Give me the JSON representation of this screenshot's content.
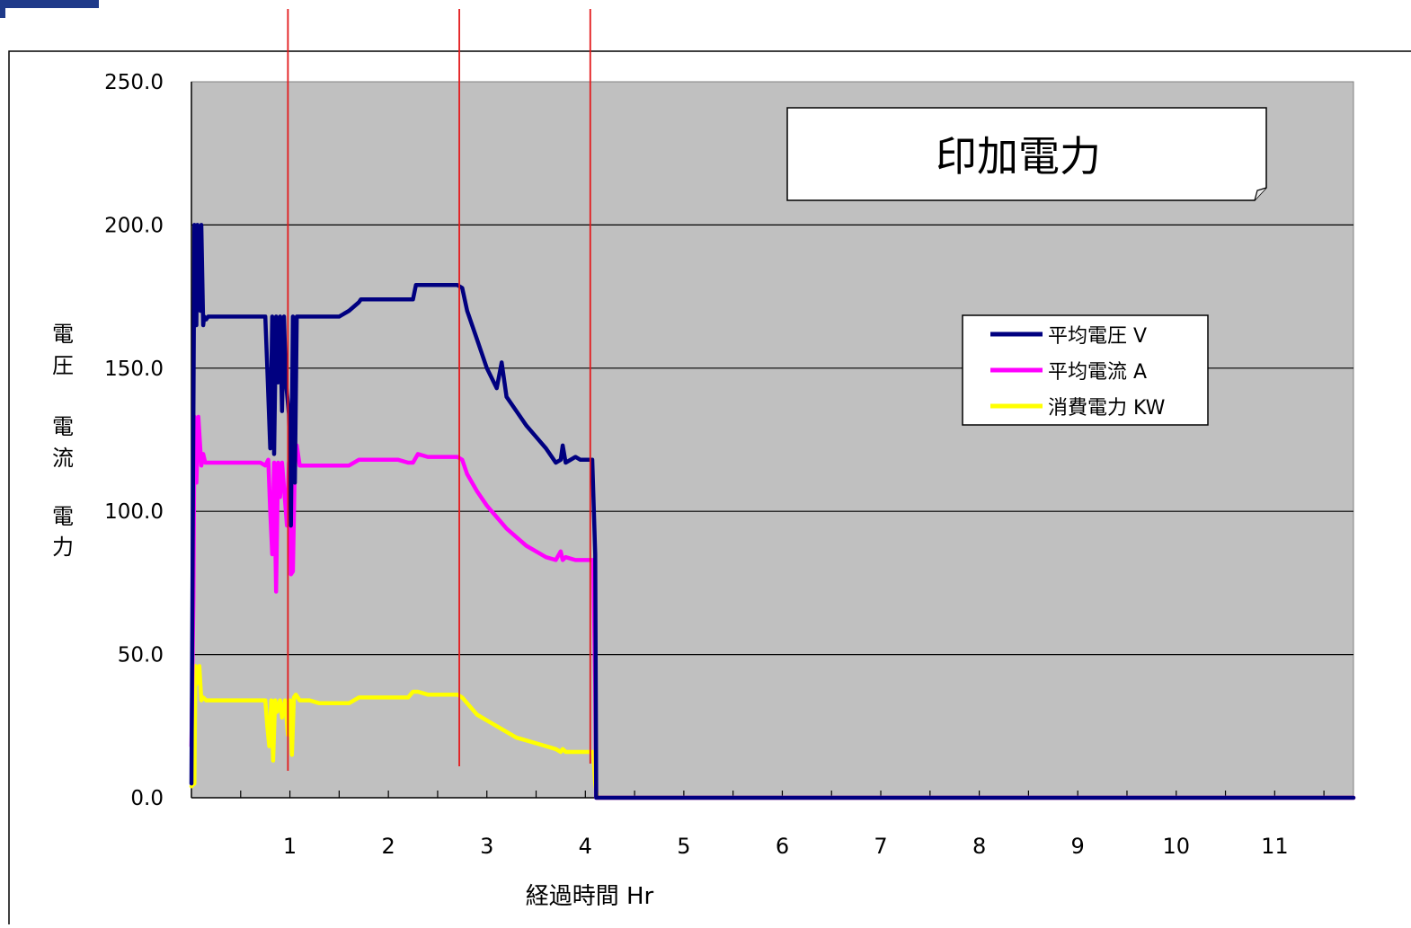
{
  "chart_data": {
    "type": "line",
    "title": "印加電力",
    "xlabel": "経過時間 Hr",
    "ylabel_lines": [
      "電",
      "圧",
      "電",
      "流",
      "電",
      "力"
    ],
    "xlim": [
      0,
      11.8
    ],
    "ylim": [
      0,
      250
    ],
    "y_ticks": [
      "0.0",
      "50.0",
      "100.0",
      "150.0",
      "200.0",
      "250.0"
    ],
    "x_ticks": [
      "1",
      "2",
      "3",
      "4",
      "5",
      "6",
      "7",
      "8",
      "9",
      "10",
      "11"
    ],
    "grid": true,
    "legend_position": "top-right",
    "plot_background": "#c0c0c0",
    "reference_lines": {
      "color": "#e31a1c",
      "x": [
        0.98,
        2.72,
        4.05
      ]
    },
    "series": [
      {
        "name": "平均電圧 V",
        "color": "#000080",
        "x": [
          0.0,
          0.01,
          0.03,
          0.05,
          0.06,
          0.09,
          0.1,
          0.12,
          0.13,
          0.15,
          0.17,
          0.2,
          0.3,
          0.4,
          0.5,
          0.6,
          0.7,
          0.75,
          0.77,
          0.8,
          0.82,
          0.84,
          0.86,
          0.88,
          0.9,
          0.92,
          0.94,
          0.96,
          0.99,
          1.01,
          1.03,
          1.05,
          1.07,
          1.1,
          1.15,
          1.2,
          1.5,
          1.6,
          1.7,
          1.72,
          1.75,
          1.8,
          2.1,
          2.2,
          2.25,
          2.28,
          2.3,
          2.4,
          2.5,
          2.6,
          2.7,
          2.75,
          2.8,
          2.9,
          3.0,
          3.1,
          3.15,
          3.2,
          3.3,
          3.4,
          3.5,
          3.6,
          3.7,
          3.75,
          3.77,
          3.8,
          3.9,
          3.95,
          4.0,
          4.05,
          4.07,
          4.1,
          4.11,
          4.12,
          4.15,
          4.3,
          4.5,
          5.0,
          6.0,
          7.0,
          8.0,
          9.0,
          10.0,
          11.0,
          11.8
        ],
        "y": [
          5,
          70,
          200,
          165,
          200,
          170,
          200,
          165,
          168,
          167,
          168,
          168,
          168,
          168,
          168,
          168,
          168,
          168,
          150,
          122,
          168,
          120,
          168,
          145,
          168,
          135,
          168,
          145,
          134,
          95,
          168,
          110,
          168,
          168,
          168,
          168,
          168,
          170,
          173,
          174,
          174,
          174,
          174,
          174,
          174,
          179,
          179,
          179,
          179,
          179,
          179,
          178,
          170,
          160,
          150,
          143,
          152,
          140,
          135,
          130,
          126,
          122,
          117,
          118,
          123,
          117,
          119,
          118,
          118,
          118,
          118,
          85,
          0,
          0,
          0,
          0,
          0,
          0,
          0,
          0,
          0,
          0,
          0,
          0,
          0
        ]
      },
      {
        "name": "平均電流 A",
        "color": "#ff00ff",
        "x": [
          0.0,
          0.02,
          0.03,
          0.05,
          0.07,
          0.1,
          0.12,
          0.14,
          0.17,
          0.2,
          0.3,
          0.4,
          0.5,
          0.6,
          0.7,
          0.75,
          0.78,
          0.8,
          0.82,
          0.84,
          0.86,
          0.88,
          0.9,
          0.92,
          0.95,
          0.97,
          0.99,
          1.01,
          1.03,
          1.05,
          1.07,
          1.1,
          1.15,
          1.3,
          1.5,
          1.6,
          1.7,
          1.75,
          1.8,
          2.1,
          2.2,
          2.25,
          2.3,
          2.4,
          2.5,
          2.6,
          2.7,
          2.75,
          2.8,
          2.9,
          3.0,
          3.1,
          3.2,
          3.3,
          3.4,
          3.5,
          3.6,
          3.7,
          3.75,
          3.77,
          3.8,
          3.9,
          4.0,
          4.05,
          4.08,
          4.1,
          4.11,
          4.12,
          4.15,
          4.5,
          5.0,
          6.0,
          7.0,
          8.0,
          9.0,
          10.0,
          11.0,
          11.8
        ],
        "y": [
          18,
          70,
          133,
          110,
          133,
          116,
          120,
          117,
          117,
          117,
          117,
          117,
          117,
          117,
          117,
          116,
          118,
          100,
          85,
          117,
          72,
          117,
          105,
          117,
          104,
          95,
          117,
          78,
          79,
          118,
          123,
          116,
          116,
          116,
          116,
          116,
          118,
          118,
          118,
          118,
          117,
          117,
          120,
          119,
          119,
          119,
          119,
          118,
          113,
          107,
          102,
          98,
          94,
          91,
          88,
          86,
          84,
          83,
          86,
          83,
          84,
          83,
          83,
          83,
          83,
          40,
          0,
          0,
          0,
          0,
          0,
          0,
          0,
          0,
          0,
          0,
          0,
          0
        ]
      },
      {
        "name": "消費電力 KW",
        "color": "#ffff00",
        "x": [
          0.0,
          0.03,
          0.04,
          0.06,
          0.08,
          0.1,
          0.12,
          0.15,
          0.2,
          0.3,
          0.5,
          0.7,
          0.75,
          0.77,
          0.79,
          0.81,
          0.83,
          0.85,
          0.87,
          0.9,
          0.92,
          0.95,
          0.98,
          1.0,
          1.02,
          1.04,
          1.06,
          1.08,
          1.1,
          1.2,
          1.3,
          1.5,
          1.6,
          1.7,
          1.8,
          2.1,
          2.2,
          2.25,
          2.3,
          2.4,
          2.5,
          2.6,
          2.7,
          2.75,
          2.8,
          2.9,
          3.0,
          3.1,
          3.2,
          3.3,
          3.4,
          3.5,
          3.6,
          3.7,
          3.75,
          3.77,
          3.8,
          3.9,
          4.0,
          4.05,
          4.08,
          4.1,
          4.12,
          4.15,
          4.5,
          5.0,
          6.0,
          7.0,
          8.0,
          9.0,
          10.0,
          11.0,
          11.8
        ],
        "y": [
          4,
          5,
          46,
          40,
          46,
          34,
          35,
          34,
          34,
          34,
          34,
          34,
          34,
          25,
          18,
          34,
          13,
          34,
          30,
          34,
          28,
          34,
          22,
          34,
          15,
          35,
          36,
          35,
          34,
          34,
          33,
          33,
          33,
          35,
          35,
          35,
          35,
          37,
          37,
          36,
          36,
          36,
          36,
          35,
          33,
          29,
          27,
          25,
          23,
          21,
          20,
          19,
          18,
          17,
          16,
          17,
          16,
          16,
          16,
          16,
          16,
          5,
          0,
          0,
          0,
          0,
          0,
          0,
          0,
          0,
          0,
          0,
          0
        ]
      }
    ]
  }
}
